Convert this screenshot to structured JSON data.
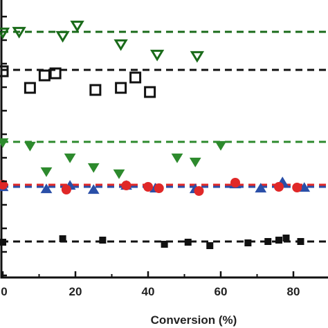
{
  "chart_data": {
    "type": "scatter",
    "xlabel": "Conversion (%)",
    "xlim": [
      0,
      89
    ],
    "x_ticks": [
      0,
      20,
      40,
      60,
      80
    ],
    "x_tick_labels": [
      "0",
      "20",
      "40",
      "60",
      "80"
    ],
    "ylim": [
      0,
      474
    ],
    "y_tick_count": 12,
    "grid": false,
    "series": [
      {
        "marker": "triangle-down-open",
        "color": "#1a6b1a",
        "points": [
          [
            0,
            47
          ],
          [
            4.5,
            46
          ],
          [
            16.5,
            52
          ],
          [
            20.5,
            37
          ],
          [
            32.5,
            64
          ],
          [
            42.5,
            79
          ],
          [
            53.5,
            81
          ]
        ]
      },
      {
        "marker": "square-open",
        "color": "#111111",
        "points": [
          [
            0,
            103
          ],
          [
            7.5,
            127
          ],
          [
            11.5,
            109
          ],
          [
            14.5,
            106
          ],
          [
            25.5,
            130
          ],
          [
            32.5,
            127
          ],
          [
            36.5,
            112
          ],
          [
            40.5,
            133
          ]
        ]
      },
      {
        "marker": "triangle-down-filled",
        "color": "#2d8a2d",
        "points": [
          [
            0,
            206
          ],
          [
            7.5,
            211
          ],
          [
            12,
            248
          ],
          [
            18.5,
            228
          ],
          [
            25,
            242
          ],
          [
            32,
            251
          ],
          [
            48,
            228
          ],
          [
            53,
            234
          ],
          [
            60,
            210
          ]
        ]
      },
      {
        "marker": "triangle-up-filled",
        "color": "#2a4fa8",
        "points": [
          [
            0,
            270
          ],
          [
            12,
            273
          ],
          [
            18.5,
            268
          ],
          [
            25,
            274
          ],
          [
            34,
            268
          ],
          [
            42,
            272
          ],
          [
            53,
            273
          ],
          [
            64,
            266
          ],
          [
            71,
            272
          ],
          [
            77,
            263
          ],
          [
            83,
            271
          ]
        ]
      },
      {
        "marker": "circle-filled",
        "color": "#e02828",
        "points": [
          [
            0,
            267
          ],
          [
            17.5,
            274
          ],
          [
            34,
            268
          ],
          [
            40,
            270
          ],
          [
            43,
            272
          ],
          [
            54,
            276
          ],
          [
            64,
            264
          ],
          [
            76,
            270
          ],
          [
            81,
            271
          ]
        ]
      },
      {
        "marker": "square-filled",
        "color": "#111111",
        "points": [
          [
            0,
            350
          ],
          [
            16.5,
            345
          ],
          [
            27.5,
            347
          ],
          [
            44.5,
            353
          ],
          [
            51,
            350
          ],
          [
            57,
            355
          ],
          [
            67.5,
            351
          ],
          [
            73,
            349
          ],
          [
            76,
            347
          ],
          [
            78,
            344
          ],
          [
            82,
            349
          ]
        ]
      }
    ],
    "reference_lines": [
      {
        "y": 46,
        "color": "#1a6b1a"
      },
      {
        "y": 101,
        "color": "#111111"
      },
      {
        "y": 205,
        "color": "#2d8a2d"
      },
      {
        "y": 267,
        "color": "#e02828"
      },
      {
        "y": 270,
        "color": "#2a4fa8"
      },
      {
        "y": 349,
        "color": "#111111"
      }
    ]
  }
}
